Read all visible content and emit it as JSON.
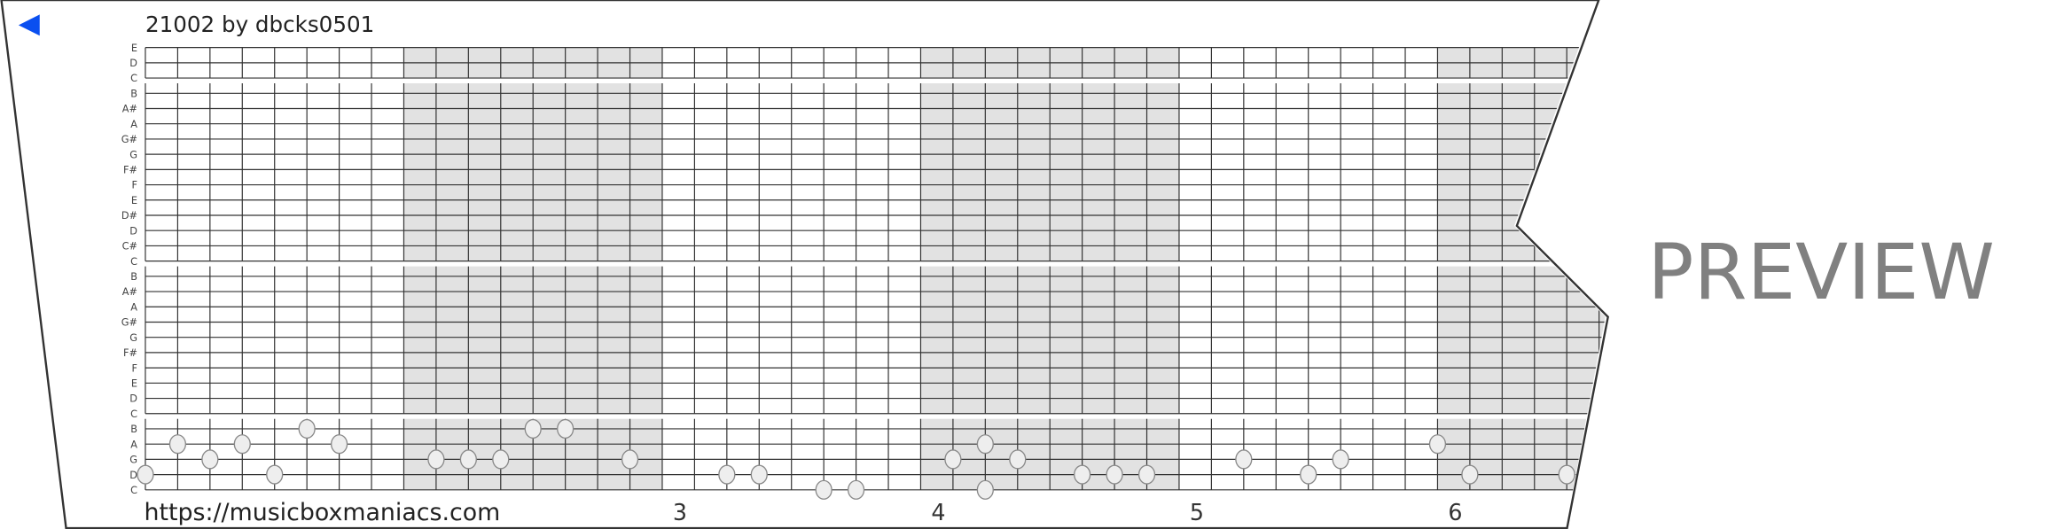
{
  "header": {
    "title": "21002 by dbcks0501",
    "back_icon": "triangle-left-icon",
    "accent_color": "#0a4ff0"
  },
  "footer": {
    "url": "https://musicboxmaniacs.com",
    "measure_numbers": [
      "3",
      "4",
      "5",
      "6"
    ]
  },
  "watermark": "PREVIEW",
  "strip": {
    "row_labels": [
      "E",
      "D",
      "C",
      "B",
      "A#",
      "A",
      "G#",
      "G",
      "F#",
      "F",
      "E",
      "D#",
      "D",
      "C#",
      "C",
      "B",
      "A#",
      "A",
      "G#",
      "G",
      "F#",
      "F",
      "E",
      "D",
      "C",
      "B",
      "A",
      "G",
      "D",
      "C"
    ],
    "beats_per_measure": 8,
    "shaded_color": "#e2e2e2",
    "notes": [
      {
        "beat": 0,
        "row": 28,
        "pitch": "D"
      },
      {
        "beat": 1,
        "row": 26,
        "pitch": "A"
      },
      {
        "beat": 2,
        "row": 27,
        "pitch": "G"
      },
      {
        "beat": 3,
        "row": 26,
        "pitch": "A"
      },
      {
        "beat": 4,
        "row": 28,
        "pitch": "D"
      },
      {
        "beat": 5,
        "row": 25,
        "pitch": "B"
      },
      {
        "beat": 6,
        "row": 26,
        "pitch": "A"
      },
      {
        "beat": 9,
        "row": 27,
        "pitch": "G"
      },
      {
        "beat": 10,
        "row": 27,
        "pitch": "G"
      },
      {
        "beat": 11,
        "row": 27,
        "pitch": "G"
      },
      {
        "beat": 12,
        "row": 25,
        "pitch": "B"
      },
      {
        "beat": 13,
        "row": 25,
        "pitch": "B"
      },
      {
        "beat": 15,
        "row": 27,
        "pitch": "G"
      },
      {
        "beat": 18,
        "row": 28,
        "pitch": "D"
      },
      {
        "beat": 19,
        "row": 28,
        "pitch": "D"
      },
      {
        "beat": 21,
        "row": 29,
        "pitch": "C"
      },
      {
        "beat": 22,
        "row": 29,
        "pitch": "C"
      },
      {
        "beat": 25,
        "row": 27,
        "pitch": "G"
      },
      {
        "beat": 26,
        "row": 26,
        "pitch": "A"
      },
      {
        "beat": 26,
        "row": 29,
        "pitch": "C"
      },
      {
        "beat": 27,
        "row": 27,
        "pitch": "G"
      },
      {
        "beat": 29,
        "row": 28,
        "pitch": "D"
      },
      {
        "beat": 30,
        "row": 28,
        "pitch": "D"
      },
      {
        "beat": 31,
        "row": 28,
        "pitch": "D"
      },
      {
        "beat": 34,
        "row": 27,
        "pitch": "G"
      },
      {
        "beat": 36,
        "row": 28,
        "pitch": "D"
      },
      {
        "beat": 37,
        "row": 27,
        "pitch": "G"
      },
      {
        "beat": 40,
        "row": 26,
        "pitch": "A"
      },
      {
        "beat": 41,
        "row": 28,
        "pitch": "D"
      },
      {
        "beat": 44,
        "row": 28,
        "pitch": "D"
      }
    ]
  }
}
